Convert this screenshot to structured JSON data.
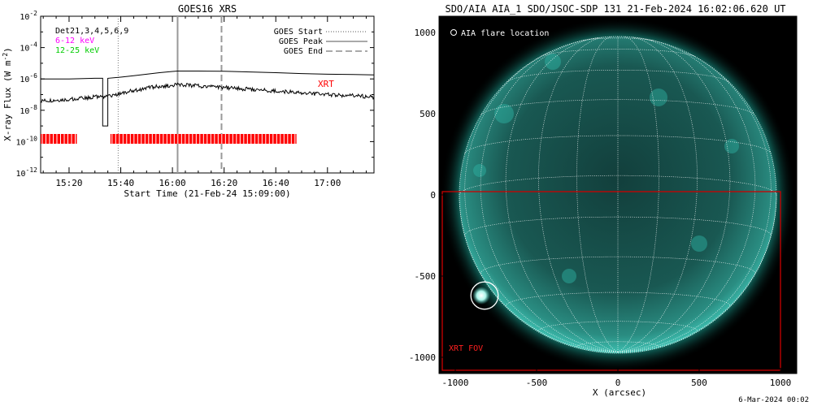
{
  "goes_panel": {
    "title": "GOES16 XRS",
    "ylabel": "X-ray Flux (W m",
    "ylabel_sup": "-2",
    "ylabel_close": ")",
    "xlabel": "Start Time (21-Feb-24 15:09:00)",
    "det_label": "Det21,3,4,5,6,9",
    "band_low": "6-12 keV",
    "band_high": "12-25 keV",
    "legend": [
      {
        "label": "GOES Start",
        "style": "dotted"
      },
      {
        "label": "GOES Peak",
        "style": "solid"
      },
      {
        "label": "GOES End",
        "style": "dashed"
      }
    ],
    "xrt_label": "XRT"
  },
  "aia_panel": {
    "title": "SDO/AIA AIA_1 SDO/JSOC-SDP 131 21-Feb-2024 16:02:06.620 UT",
    "flare_legend": "AIA flare location",
    "fov_label": "XRT FOV",
    "xlabel": "X (arcsec)"
  },
  "footer": {
    "date": "6-Mar-2024 00:02"
  },
  "colors": {
    "band_low": "#ff00ff",
    "band_high": "#00cc00",
    "xrt": "#ff0000",
    "disk": "#1f6f66",
    "corona": "#3ad3c5"
  },
  "chart_data": [
    {
      "type": "line",
      "title": "GOES16 XRS",
      "xlabel": "Start Time (21-Feb-24 15:09:00)",
      "ylabel": "X-ray Flux (W m^-2)",
      "y_scale": "log",
      "ylim": [
        1e-12,
        0.01
      ],
      "x_ticks": [
        "15:20",
        "15:40",
        "16:00",
        "16:20",
        "16:40",
        "17:00"
      ],
      "y_ticks": [
        "10^-2",
        "10^-4",
        "10^-6",
        "10^-8",
        "10^-10",
        "10^-12"
      ],
      "events": {
        "goes_start": "15:39",
        "goes_peak": "16:02",
        "goes_end": "16:19"
      },
      "series": [
        {
          "name": "6-12 keV",
          "x": [
            "15:09",
            "15:20",
            "15:30",
            "15:33",
            "15:33",
            "15:35",
            "15:35",
            "15:40",
            "15:45",
            "15:50",
            "15:55",
            "16:00",
            "16:02",
            "16:10",
            "16:20",
            "16:30",
            "16:40",
            "16:50",
            "17:00",
            "17:10",
            "17:18"
          ],
          "y": [
            1e-06,
            1e-06,
            1.1e-06,
            1.1e-06,
            1e-09,
            1e-09,
            1.1e-06,
            1.3e-06,
            1.6e-06,
            2e-06,
            2.5e-06,
            3e-06,
            3.2e-06,
            3.2e-06,
            3.1e-06,
            2.8e-06,
            2.5e-06,
            2.2e-06,
            2e-06,
            1.9e-06,
            1.8e-06
          ]
        },
        {
          "name": "12-25 keV",
          "x": [
            "15:09",
            "15:20",
            "15:30",
            "15:35",
            "15:40",
            "15:45",
            "15:50",
            "15:55",
            "16:00",
            "16:02",
            "16:10",
            "16:20",
            "16:30",
            "16:40",
            "16:50",
            "17:00",
            "17:10",
            "17:18"
          ],
          "y": [
            4e-08,
            5e-08,
            7e-08,
            8e-08,
            1.2e-07,
            1.8e-07,
            2.6e-07,
            3.4e-07,
            4e-07,
            4.2e-07,
            3.6e-07,
            2.8e-07,
            2.2e-07,
            1.7e-07,
            1.3e-07,
            1e-07,
            8.5e-08,
            7e-08
          ]
        }
      ],
      "xrt_coverage": [
        [
          "15:09",
          "15:23"
        ],
        [
          "15:36",
          "16:48"
        ]
      ]
    },
    {
      "type": "scatter",
      "title": "SDO/AIA AIA_1 SDO/JSOC-SDP 131 21-Feb-2024 16:02:06.620 UT",
      "xlabel": "X (arcsec)",
      "ylabel": "",
      "xlim": [
        -1100,
        1100
      ],
      "ylim": [
        -1100,
        1100
      ],
      "x_ticks": [
        -1000,
        -500,
        0,
        500,
        1000
      ],
      "y_ticks": [
        1000,
        500,
        0,
        -500,
        -1000
      ],
      "solar_radius_arcsec": 975,
      "flare_location": {
        "x": -820,
        "y": -620,
        "radius": 80
      },
      "xrt_fov": {
        "x": [
          -1080,
          1000
        ],
        "y": [
          -1080,
          20
        ]
      }
    }
  ]
}
